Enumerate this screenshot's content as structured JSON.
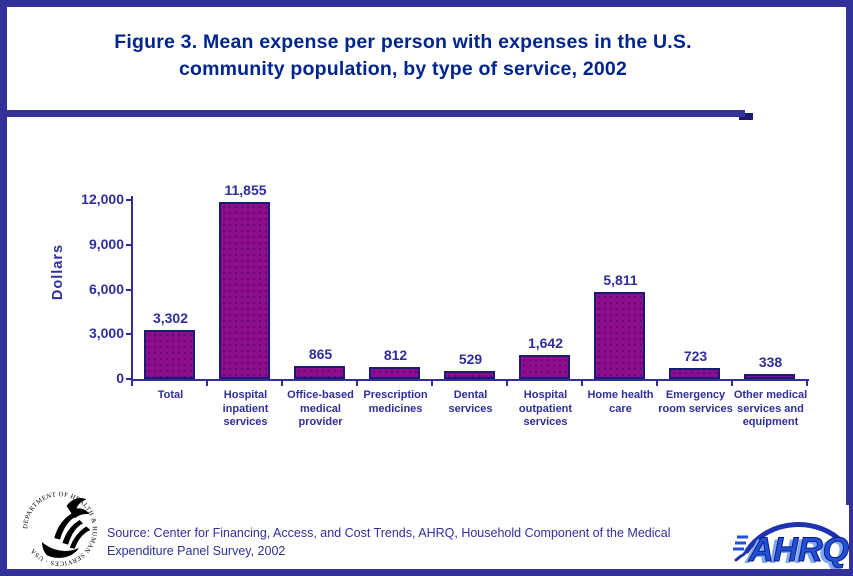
{
  "slide": {
    "title_line1": "Figure 3. Mean expense per person with expenses in the U.S.",
    "title_line2": "community population, by type of service, 2002",
    "source_text": "Source: Center for Financing, Access, and Cost Trends, AHRQ, Household Component of the Medical Expenditure Panel Survey, 2002"
  },
  "logos": {
    "hhs_circle_text": "DEPARTMENT OF HEALTH & HUMAN SERVICES · USA",
    "ahrq_text": "AHRQ"
  },
  "colors": {
    "title_navy": "#00258F",
    "chart_navy": "#2E2E9C",
    "bar_fill": "#8C0E8C",
    "bar_border": "#1B1B75",
    "frame_indigo": "#32329A",
    "divider_indigo": "#333399",
    "ahrq_blue": "#2450D8"
  },
  "chart_data": {
    "type": "bar",
    "title": "Figure 3. Mean expense per person with expenses in the U.S. community population, by type of service, 2002",
    "xlabel": "",
    "ylabel": "Dollars",
    "ylim": [
      0,
      12000
    ],
    "grid": false,
    "legend": null,
    "yticks": [
      {
        "label": "0",
        "value": 0
      },
      {
        "label": "3,000",
        "value": 3000
      },
      {
        "label": "6,000",
        "value": 6000
      },
      {
        "label": "9,000",
        "value": 9000
      },
      {
        "label": "12,000",
        "value": 12000
      }
    ],
    "categories": [
      "Total",
      "Hospital inpatient services",
      "Office-based medical provider",
      "Prescription medicines",
      "Dental services",
      "Hospital outpatient services",
      "Home health care",
      "Emergency room services",
      "Other medical services and equipment"
    ],
    "values": [
      3302,
      11855,
      865,
      812,
      529,
      1642,
      5811,
      723,
      338
    ],
    "value_labels": [
      "3,302",
      "11,855",
      "865",
      "812",
      "529",
      "1,642",
      "5,811",
      "723",
      "338"
    ]
  }
}
